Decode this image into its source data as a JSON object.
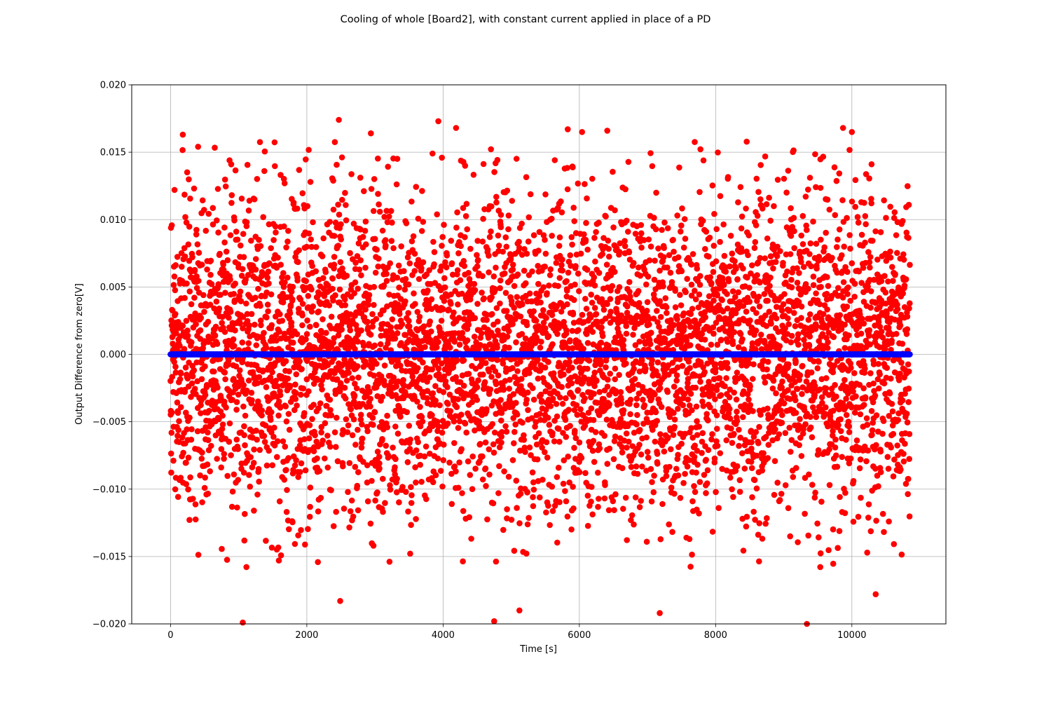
{
  "chart_data": {
    "type": "scatter",
    "title": "Cooling of whole [Board2], with constant current applied in place of a PD",
    "xlabel": "Time [s]",
    "ylabel": "Output Difference from zero[V]",
    "xlim": [
      -570,
      11380
    ],
    "ylim": [
      -0.02,
      0.02
    ],
    "xticks": [
      0,
      2000,
      4000,
      6000,
      8000,
      10000
    ],
    "xtick_labels": [
      "0",
      "2000",
      "4000",
      "6000",
      "8000",
      "10000"
    ],
    "yticks": [
      -0.02,
      -0.015,
      -0.01,
      -0.005,
      0.0,
      0.005,
      0.01,
      0.015,
      0.02
    ],
    "ytick_labels": [
      "−0.020",
      "−0.015",
      "−0.010",
      "−0.005",
      "0.000",
      "0.005",
      "0.010",
      "0.015",
      "0.020"
    ],
    "grid": true,
    "series": [
      {
        "color": "#ff0000",
        "marker": "circle",
        "x_range": [
          0,
          10850
        ],
        "count": 5400,
        "distribution": "gaussian noise, mean 0, std 0.0058",
        "outliers": [
          {
            "x": 2470,
            "y": 0.0174
          },
          {
            "x": 3930,
            "y": 0.0173
          },
          {
            "x": 4190,
            "y": 0.0168
          },
          {
            "x": 5830,
            "y": 0.0167
          },
          {
            "x": 6410,
            "y": 0.0166
          },
          {
            "x": 9870,
            "y": 0.0168
          },
          {
            "x": 10000,
            "y": 0.0165
          },
          {
            "x": 6040,
            "y": 0.0165
          },
          {
            "x": 180,
            "y": 0.0163
          },
          {
            "x": 2940,
            "y": 0.0164
          },
          {
            "x": 1060,
            "y": -0.0199
          },
          {
            "x": 4750,
            "y": -0.0198
          },
          {
            "x": 9340,
            "y": -0.02
          },
          {
            "x": 7180,
            "y": -0.0192
          },
          {
            "x": 5120,
            "y": -0.019
          },
          {
            "x": 10350,
            "y": -0.0178
          },
          {
            "x": 2490,
            "y": -0.0183
          }
        ]
      },
      {
        "color": "#0000ff",
        "marker": "circle",
        "x_range": [
          0,
          10850
        ],
        "count": 2200,
        "constant_y": 0.0
      }
    ]
  }
}
